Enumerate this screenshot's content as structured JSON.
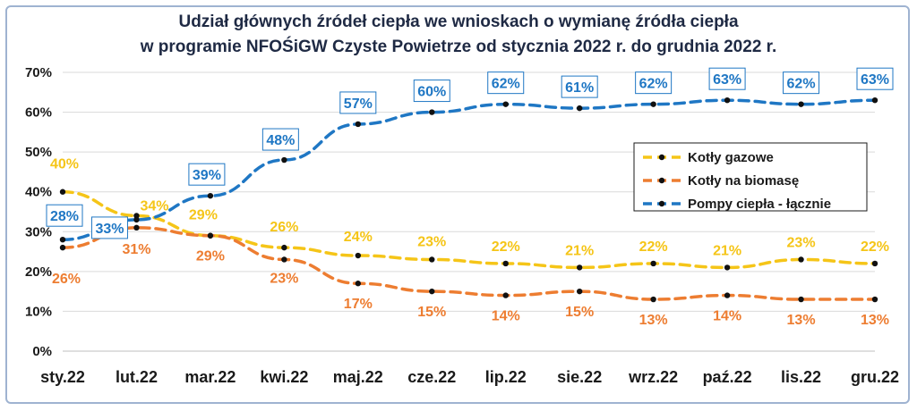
{
  "chart_data": {
    "type": "line",
    "title_line1": "Udział głównych źródeł ciepła we wnioskach o wymianę źródła ciepła",
    "title_line2": "w  programie NFOŚiGW Czyste Powietrze od stycznia 2022 r. do grudnia 2022 r.",
    "categories": [
      "sty.22",
      "lut.22",
      "mar.22",
      "kwi.22",
      "maj.22",
      "cze.22",
      "lip.22",
      "sie.22",
      "wrz.22",
      "paź.22",
      "lis.22",
      "gru.22"
    ],
    "y_ticks": [
      "0%",
      "10%",
      "20%",
      "30%",
      "40%",
      "50%",
      "60%",
      "70%"
    ],
    "ylim": [
      0,
      70
    ],
    "y_unit": "%",
    "legend_position": "right-middle",
    "series": [
      {
        "name": "Kotły gazowe",
        "color": "#f5c518",
        "values": [
          40,
          34,
          29,
          26,
          24,
          23,
          22,
          21,
          22,
          21,
          23,
          22
        ],
        "labels_boxed": false
      },
      {
        "name": "Kotły na biomasę",
        "color": "#ed7d31",
        "values": [
          26,
          31,
          29,
          23,
          17,
          15,
          14,
          15,
          13,
          14,
          13,
          13
        ],
        "labels_boxed": false
      },
      {
        "name": "Pompy ciepła - łącznie",
        "color": "#1f77c4",
        "values": [
          28,
          33,
          39,
          48,
          57,
          60,
          62,
          61,
          62,
          63,
          62,
          63
        ],
        "labels_boxed": true
      }
    ]
  }
}
